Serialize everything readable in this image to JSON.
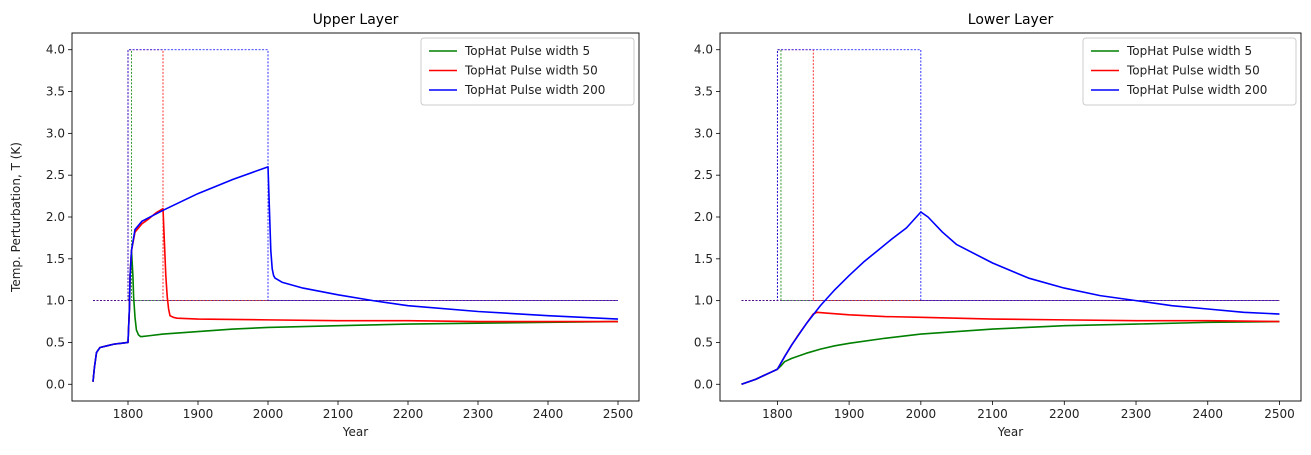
{
  "chart_data": [
    {
      "type": "line",
      "title": "Upper Layer",
      "xlabel": "Year",
      "ylabel": "Temp. Perturbation, T (K)",
      "xlim": [
        1720,
        2530
      ],
      "ylim": [
        -0.2,
        4.2
      ],
      "xticks": [
        1800,
        1900,
        2000,
        2100,
        2200,
        2300,
        2400,
        2500
      ],
      "yticks": [
        0.0,
        0.5,
        1.0,
        1.5,
        2.0,
        2.5,
        3.0,
        3.5,
        4.0
      ],
      "legend_position": "top-right",
      "series": [
        {
          "name": "TopHat Pulse width 5",
          "color": "#008000",
          "x": [
            1750,
            1752,
            1755,
            1760,
            1770,
            1780,
            1790,
            1800,
            1802,
            1803,
            1805,
            1807,
            1808,
            1810,
            1812,
            1815,
            1818,
            1820,
            1830,
            1850,
            1900,
            1950,
            2000,
            2100,
            2200,
            2300,
            2400,
            2500
          ],
          "y": [
            0.03,
            0.2,
            0.38,
            0.44,
            0.46,
            0.48,
            0.49,
            0.5,
            0.9,
            1.3,
            1.6,
            1.3,
            1.05,
            0.8,
            0.65,
            0.59,
            0.57,
            0.57,
            0.58,
            0.6,
            0.63,
            0.66,
            0.68,
            0.7,
            0.72,
            0.73,
            0.74,
            0.75
          ]
        },
        {
          "name": "TopHat Pulse width 50",
          "color": "#ff0000",
          "x": [
            1750,
            1752,
            1755,
            1760,
            1770,
            1780,
            1790,
            1800,
            1802,
            1803,
            1805,
            1810,
            1820,
            1830,
            1840,
            1850,
            1852,
            1854,
            1856,
            1858,
            1860,
            1865,
            1870,
            1900,
            2000,
            2100,
            2200,
            2300,
            2400,
            2500
          ],
          "y": [
            0.03,
            0.2,
            0.38,
            0.44,
            0.46,
            0.48,
            0.49,
            0.5,
            0.9,
            1.3,
            1.6,
            1.82,
            1.92,
            1.98,
            2.05,
            2.1,
            1.7,
            1.3,
            1.05,
            0.9,
            0.82,
            0.8,
            0.79,
            0.78,
            0.77,
            0.76,
            0.76,
            0.75,
            0.75,
            0.75
          ]
        },
        {
          "name": "TopHat Pulse width 200",
          "color": "#0000ff",
          "x": [
            1750,
            1752,
            1755,
            1760,
            1770,
            1780,
            1790,
            1800,
            1802,
            1803,
            1805,
            1810,
            1820,
            1850,
            1900,
            1950,
            2000,
            2002,
            2004,
            2006,
            2008,
            2010,
            2020,
            2050,
            2100,
            2150,
            2200,
            2300,
            2400,
            2500
          ],
          "y": [
            0.03,
            0.2,
            0.38,
            0.44,
            0.46,
            0.48,
            0.49,
            0.5,
            0.9,
            1.3,
            1.6,
            1.85,
            1.95,
            2.08,
            2.28,
            2.45,
            2.6,
            2.1,
            1.6,
            1.38,
            1.3,
            1.27,
            1.22,
            1.15,
            1.07,
            1.0,
            0.94,
            0.87,
            0.82,
            0.78
          ]
        }
      ],
      "forcing": [
        {
          "color": "#008000",
          "x": [
            1750,
            1800,
            1800,
            1805,
            1805,
            2500
          ],
          "y": [
            1,
            1,
            4,
            4,
            1,
            1
          ]
        },
        {
          "color": "#ff0000",
          "x": [
            1750,
            1800,
            1800,
            1850,
            1850,
            2500
          ],
          "y": [
            1,
            1,
            4,
            4,
            1,
            1
          ]
        },
        {
          "color": "#0000ff",
          "x": [
            1750,
            1800,
            1800,
            2000,
            2000,
            2500
          ],
          "y": [
            1,
            1,
            4,
            4,
            1,
            1
          ]
        },
        {
          "color": "#4b0082",
          "x": [
            1750,
            2500
          ],
          "y": [
            1,
            1
          ]
        }
      ]
    },
    {
      "type": "line",
      "title": "Lower Layer",
      "xlabel": "Year",
      "ylabel": "",
      "xlim": [
        1720,
        2530
      ],
      "ylim": [
        -0.2,
        4.2
      ],
      "xticks": [
        1800,
        1900,
        2000,
        2100,
        2200,
        2300,
        2400,
        2500
      ],
      "yticks": [
        0.0,
        0.5,
        1.0,
        1.5,
        2.0,
        2.5,
        3.0,
        3.5,
        4.0
      ],
      "legend_position": "top-right",
      "series": [
        {
          "name": "TopHat Pulse width 5",
          "color": "#008000",
          "x": [
            1750,
            1760,
            1770,
            1780,
            1790,
            1800,
            1805,
            1810,
            1820,
            1840,
            1860,
            1880,
            1900,
            1950,
            2000,
            2050,
            2100,
            2200,
            2300,
            2400,
            2500
          ],
          "y": [
            0.0,
            0.03,
            0.06,
            0.1,
            0.14,
            0.18,
            0.22,
            0.27,
            0.31,
            0.37,
            0.42,
            0.46,
            0.49,
            0.55,
            0.6,
            0.63,
            0.66,
            0.7,
            0.72,
            0.74,
            0.75
          ]
        },
        {
          "name": "TopHat Pulse width 50",
          "color": "#ff0000",
          "x": [
            1750,
            1760,
            1770,
            1780,
            1790,
            1800,
            1810,
            1820,
            1830,
            1840,
            1850,
            1855,
            1870,
            1900,
            1950,
            2000,
            2100,
            2200,
            2300,
            2400,
            2500
          ],
          "y": [
            0.0,
            0.03,
            0.06,
            0.1,
            0.14,
            0.18,
            0.33,
            0.47,
            0.6,
            0.72,
            0.84,
            0.86,
            0.85,
            0.83,
            0.81,
            0.8,
            0.78,
            0.77,
            0.76,
            0.76,
            0.75
          ]
        },
        {
          "name": "TopHat Pulse width 200",
          "color": "#0000ff",
          "x": [
            1750,
            1760,
            1770,
            1780,
            1790,
            1800,
            1810,
            1820,
            1840,
            1860,
            1880,
            1900,
            1920,
            1940,
            1960,
            1980,
            2000,
            2010,
            2030,
            2050,
            2100,
            2150,
            2200,
            2250,
            2300,
            2350,
            2400,
            2450,
            2500
          ],
          "y": [
            0.0,
            0.03,
            0.06,
            0.1,
            0.14,
            0.18,
            0.33,
            0.47,
            0.72,
            0.94,
            1.13,
            1.3,
            1.46,
            1.6,
            1.74,
            1.87,
            2.06,
            2.0,
            1.82,
            1.67,
            1.45,
            1.27,
            1.15,
            1.06,
            1.0,
            0.94,
            0.9,
            0.86,
            0.84
          ]
        }
      ],
      "forcing": [
        {
          "color": "#008000",
          "x": [
            1750,
            1800,
            1800,
            1805,
            1805,
            2500
          ],
          "y": [
            1,
            1,
            4,
            4,
            1,
            1
          ]
        },
        {
          "color": "#ff0000",
          "x": [
            1750,
            1800,
            1800,
            1850,
            1850,
            2500
          ],
          "y": [
            1,
            1,
            4,
            4,
            1,
            1
          ]
        },
        {
          "color": "#0000ff",
          "x": [
            1750,
            1800,
            1800,
            2000,
            2000,
            2500
          ],
          "y": [
            1,
            1,
            4,
            4,
            1,
            1
          ]
        },
        {
          "color": "#4b0082",
          "x": [
            1750,
            2500
          ],
          "y": [
            1,
            1
          ]
        }
      ]
    }
  ]
}
